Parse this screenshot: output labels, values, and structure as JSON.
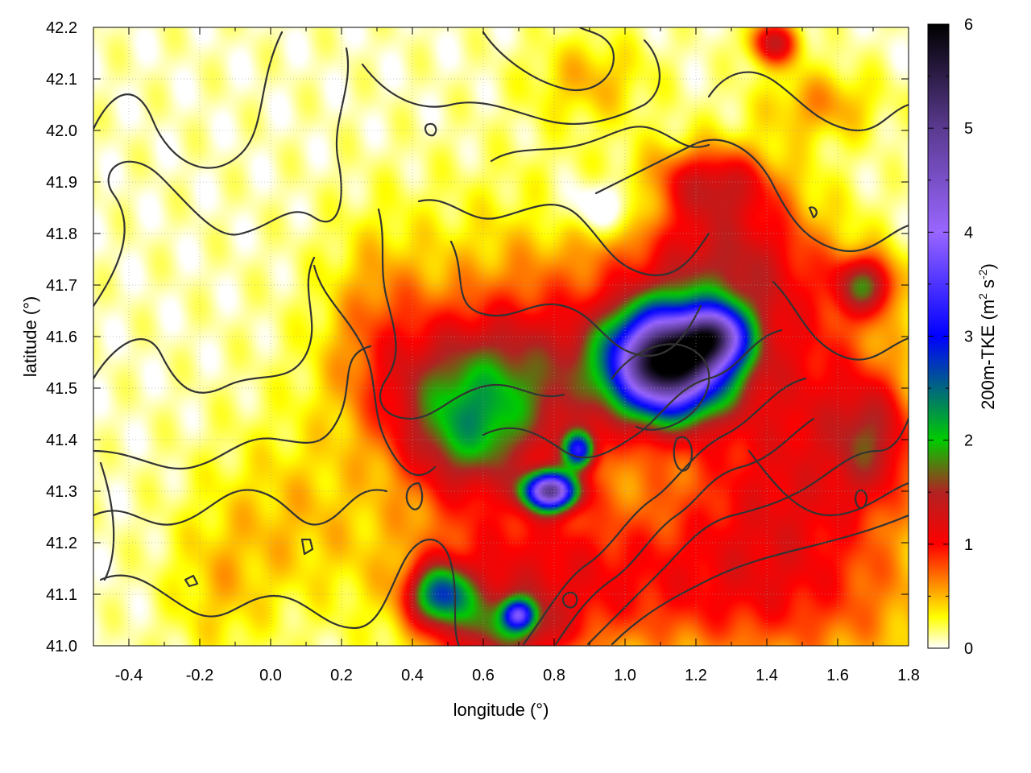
{
  "chart_data": {
    "type": "heatmap",
    "title": "",
    "xlabel": "longitude (°)",
    "ylabel": "latitude (°)",
    "xlim": [
      -0.5,
      1.8
    ],
    "ylim": [
      41.0,
      42.2
    ],
    "x_ticks": [
      -0.4,
      -0.2,
      0.0,
      0.2,
      0.4,
      0.6,
      0.8,
      1.0,
      1.2,
      1.4,
      1.6,
      1.8
    ],
    "x_tick_labels": [
      "-0.4",
      "-0.2",
      "0.0",
      "0.2",
      "0.4",
      "0.6",
      "0.8",
      "1.0",
      "1.2",
      "1.4",
      "1.6",
      "1.8"
    ],
    "y_ticks": [
      41.0,
      41.1,
      41.2,
      41.3,
      41.4,
      41.5,
      41.6,
      41.7,
      41.8,
      41.9,
      42.0,
      42.1,
      42.2
    ],
    "y_tick_labels": [
      "41.0",
      "41.1",
      "41.2",
      "41.3",
      "41.4",
      "41.5",
      "41.6",
      "41.7",
      "41.8",
      "41.9",
      "42.0",
      "42.1",
      "42.2"
    ],
    "grid": true,
    "colorbar": {
      "label_parts": {
        "pre": "200m-TKE (m",
        "sup1": "2",
        "mid": " s",
        "sup2": "-2",
        "post": ")"
      },
      "range": [
        0,
        6
      ],
      "ticks": [
        0,
        1,
        2,
        3,
        4,
        5,
        6
      ],
      "tick_labels": [
        "0",
        "1",
        "2",
        "3",
        "4",
        "5",
        "6"
      ],
      "stops": [
        {
          "value": 0.0,
          "color": "#ffffff"
        },
        {
          "value": 0.3,
          "color": "#ffff00"
        },
        {
          "value": 1.0,
          "color": "#ff0000"
        },
        {
          "value": 1.5,
          "color": "#b22222"
        },
        {
          "value": 2.0,
          "color": "#00cc00"
        },
        {
          "value": 3.0,
          "color": "#0000ff"
        },
        {
          "value": 4.0,
          "color": "#9966ff"
        },
        {
          "value": 5.0,
          "color": "#5a3a90"
        },
        {
          "value": 6.0,
          "color": "#000000"
        }
      ]
    },
    "field_blobs": [
      {
        "lon": 1.12,
        "lat": 41.55,
        "slon": 0.11,
        "slat": 0.07,
        "amp": 5.6
      },
      {
        "lon": 1.26,
        "lat": 41.6,
        "slon": 0.06,
        "slat": 0.04,
        "amp": 2.8
      },
      {
        "lon": 0.79,
        "lat": 41.3,
        "slon": 0.05,
        "slat": 0.025,
        "amp": 4.2
      },
      {
        "lon": 0.87,
        "lat": 41.38,
        "slon": 0.03,
        "slat": 0.025,
        "amp": 2.5
      },
      {
        "lon": 0.6,
        "lat": 41.5,
        "slon": 0.22,
        "slat": 0.1,
        "amp": 1.2
      },
      {
        "lon": 0.55,
        "lat": 41.4,
        "slon": 0.12,
        "slat": 0.08,
        "amp": 1.0
      },
      {
        "lon": 0.85,
        "lat": 41.6,
        "slon": 0.35,
        "slat": 0.18,
        "amp": 0.65
      },
      {
        "lon": 1.3,
        "lat": 41.75,
        "slon": 0.18,
        "slat": 0.1,
        "amp": 1.0
      },
      {
        "lon": 1.25,
        "lat": 41.9,
        "slon": 0.12,
        "slat": 0.05,
        "amp": 0.9
      },
      {
        "lon": 1.5,
        "lat": 41.5,
        "slon": 0.2,
        "slat": 0.15,
        "amp": 0.8
      },
      {
        "lon": 1.45,
        "lat": 41.25,
        "slon": 0.25,
        "slat": 0.12,
        "amp": 0.7
      },
      {
        "lon": 0.7,
        "lat": 41.15,
        "slon": 0.25,
        "slat": 0.12,
        "amp": 0.85
      },
      {
        "lon": 0.65,
        "lat": 41.03,
        "slon": 0.12,
        "slat": 0.05,
        "amp": 1.1
      },
      {
        "lon": 0.48,
        "lat": 41.1,
        "slon": 0.06,
        "slat": 0.04,
        "amp": 2.0
      },
      {
        "lon": 0.7,
        "lat": 41.06,
        "slon": 0.03,
        "slat": 0.02,
        "amp": 2.2
      },
      {
        "lon": 1.2,
        "lat": 41.1,
        "slon": 0.3,
        "slat": 0.1,
        "amp": 0.5
      },
      {
        "lon": 1.6,
        "lat": 41.05,
        "slon": 0.3,
        "slat": 0.1,
        "amp": 0.35
      },
      {
        "lon": 0.05,
        "lat": 41.25,
        "slon": 0.18,
        "slat": 0.12,
        "amp": 0.35
      },
      {
        "lon": -0.15,
        "lat": 41.1,
        "slon": 0.1,
        "slat": 0.1,
        "amp": 0.3
      },
      {
        "lon": 0.3,
        "lat": 41.65,
        "slon": 0.1,
        "slat": 0.12,
        "amp": 0.35
      },
      {
        "lon": 0.9,
        "lat": 42.1,
        "slon": 0.12,
        "slat": 0.06,
        "amp": 0.4
      },
      {
        "lon": 1.55,
        "lat": 42.05,
        "slon": 0.12,
        "slat": 0.05,
        "amp": 0.5
      },
      {
        "lon": 1.68,
        "lat": 41.7,
        "slon": 0.06,
        "slat": 0.04,
        "amp": 1.3
      },
      {
        "lon": 1.42,
        "lat": 42.17,
        "slon": 0.05,
        "slat": 0.03,
        "amp": 1.2
      },
      {
        "lon": 1.7,
        "lat": 41.4,
        "slon": 0.08,
        "slat": 0.08,
        "amp": 0.9
      },
      {
        "lon": 0.95,
        "lat": 41.85,
        "slon": 0.1,
        "slat": 0.04,
        "amp": -0.5
      }
    ]
  }
}
